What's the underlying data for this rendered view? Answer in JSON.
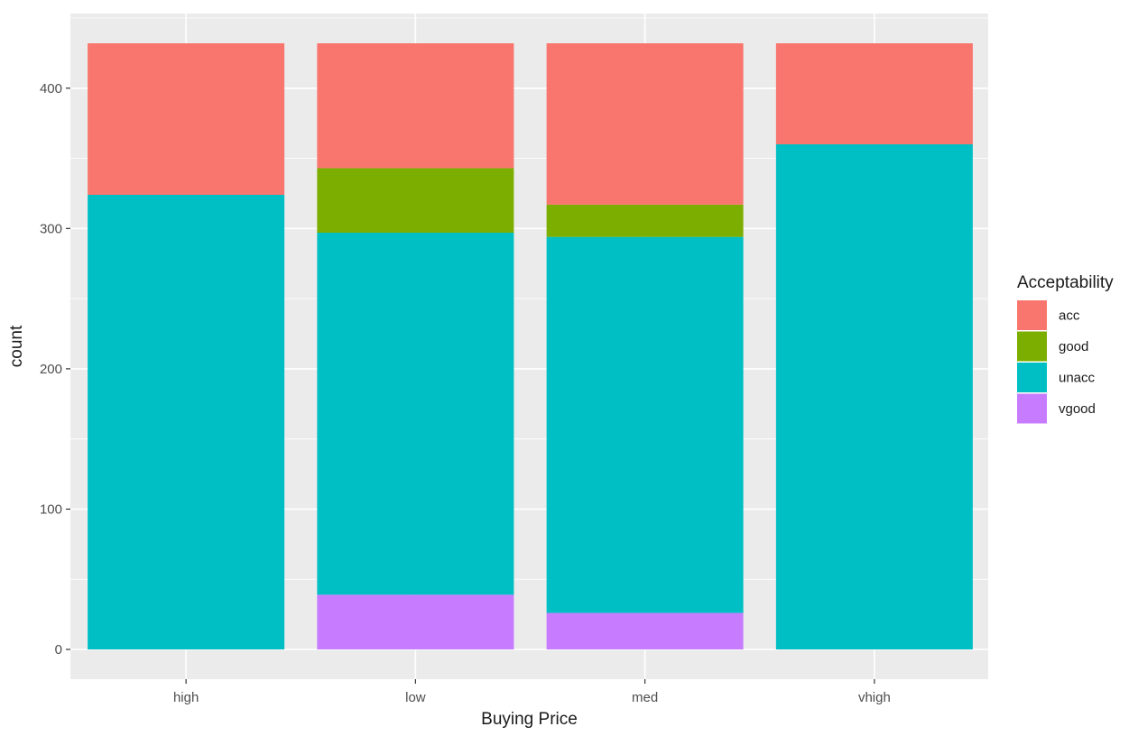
{
  "chart_data": {
    "type": "bar",
    "stacked": true,
    "title": "",
    "xlabel": "Buying Price",
    "ylabel": "count",
    "categories": [
      "high",
      "low",
      "med",
      "vhigh"
    ],
    "ylim": [
      0,
      432
    ],
    "yticks": [
      0,
      100,
      200,
      300,
      400
    ],
    "grid": true,
    "legend_position": "right",
    "legend_title": "Acceptability",
    "series": [
      {
        "name": "acc",
        "color": "#F8766D",
        "values": [
          108,
          89,
          115,
          72
        ]
      },
      {
        "name": "good",
        "color": "#7CAE00",
        "values": [
          0,
          46,
          23,
          0
        ]
      },
      {
        "name": "unacc",
        "color": "#00BFC4",
        "values": [
          324,
          258,
          268,
          360
        ]
      },
      {
        "name": "vgood",
        "color": "#C77CFF",
        "values": [
          0,
          39,
          26,
          0
        ]
      }
    ],
    "stack_order_bottom_to_top": [
      "vgood",
      "unacc",
      "good",
      "acc"
    ],
    "panel_background": "#EBEBEB",
    "grid_color": "#FFFFFF"
  }
}
